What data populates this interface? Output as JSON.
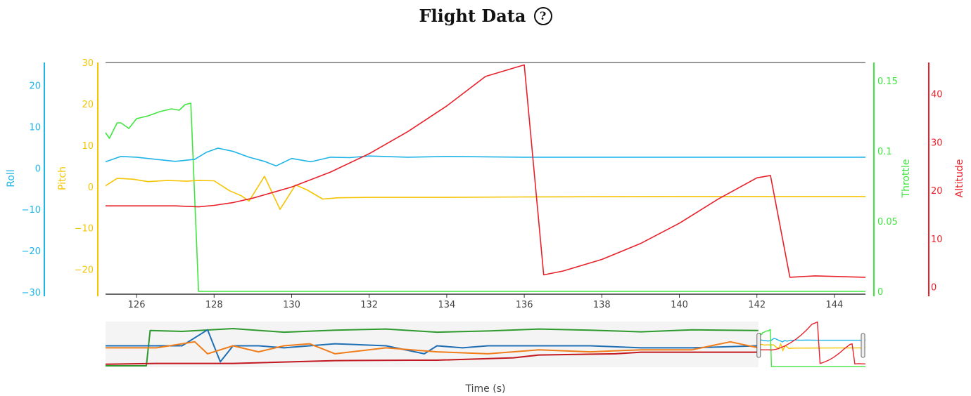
{
  "header": {
    "title": "Flight Data",
    "help_icon": "?"
  },
  "chart_data": {
    "type": "line",
    "xlabel": "Time (s)",
    "xlim": [
      125.2,
      144.8
    ],
    "x_ticks": [
      126,
      128,
      130,
      132,
      134,
      136,
      138,
      140,
      142,
      144
    ],
    "axes": [
      {
        "id": "roll",
        "label": "Roll",
        "color": "#1eb4e8",
        "ylim": [
          -30.5,
          25.5
        ],
        "ticks": [
          -30,
          -20,
          -10,
          0,
          10,
          20
        ]
      },
      {
        "id": "pitch",
        "label": "Pitch",
        "color": "#f5c400",
        "ylim": [
          -26,
          30
        ],
        "ticks": [
          -20,
          -10,
          0,
          10,
          20,
          30
        ]
      },
      {
        "id": "throttle",
        "label": "Throttle",
        "color": "#3ee63e",
        "ylim": [
          -0.002,
          0.163
        ],
        "ticks": [
          0,
          0.05,
          0.1,
          0.15
        ]
      },
      {
        "id": "altitude",
        "label": "Altitude",
        "color": "#e8202a",
        "ylim": [
          -1.5,
          46.5
        ],
        "ticks": [
          0,
          10,
          20,
          30,
          40
        ]
      }
    ],
    "series": [
      {
        "name": "Roll",
        "axis": "roll",
        "color": "#1eb4e8",
        "x": [
          125.2,
          125.6,
          126.0,
          126.5,
          127.0,
          127.5,
          127.8,
          128.1,
          128.5,
          128.9,
          129.3,
          129.6,
          130.0,
          130.5,
          131.0,
          131.5,
          132.0,
          133.0,
          134.0,
          136.0,
          140.0,
          144.8
        ],
        "y": [
          1.5,
          2.8,
          2.6,
          2.1,
          1.6,
          2.1,
          3.8,
          4.8,
          4.0,
          2.6,
          1.6,
          0.5,
          2.3,
          1.5,
          2.6,
          2.5,
          2.9,
          2.6,
          2.8,
          2.6,
          2.6,
          2.6
        ]
      },
      {
        "name": "Pitch",
        "axis": "pitch",
        "color": "#f5c400",
        "x": [
          125.2,
          125.5,
          125.9,
          126.3,
          126.8,
          127.3,
          127.6,
          128.0,
          128.4,
          128.7,
          128.9,
          129.3,
          129.7,
          130.1,
          130.4,
          130.8,
          131.2,
          132.0,
          134.0,
          136.0,
          140.0,
          144.8
        ],
        "y": [
          0.2,
          2.0,
          1.8,
          1.2,
          1.5,
          1.3,
          1.5,
          1.4,
          -1.0,
          -2.2,
          -3.5,
          2.5,
          -5.5,
          0.4,
          -0.8,
          -3.0,
          -2.7,
          -2.6,
          -2.6,
          -2.5,
          -2.4,
          -2.4
        ]
      },
      {
        "name": "Throttle",
        "axis": "throttle",
        "color": "#3ee63e",
        "x": [
          125.2,
          125.3,
          125.5,
          125.6,
          125.8,
          126.0,
          126.3,
          126.6,
          126.9,
          127.1,
          127.25,
          127.4,
          127.6,
          128.0,
          136.0,
          144.8
        ],
        "y": [
          0.113,
          0.109,
          0.12,
          0.12,
          0.116,
          0.123,
          0.125,
          0.128,
          0.13,
          0.129,
          0.133,
          0.134,
          0.0,
          0.0,
          0.0,
          0.0
        ]
      },
      {
        "name": "Altitude",
        "axis": "altitude",
        "color": "#e8202a",
        "x": [
          125.2,
          127.0,
          127.6,
          128.0,
          128.5,
          129.0,
          130.0,
          131.0,
          132.0,
          133.0,
          134.0,
          135.0,
          136.0,
          136.5,
          137.0,
          138.0,
          139.0,
          140.0,
          141.0,
          142.0,
          142.35,
          142.85,
          143.5,
          144.8
        ],
        "y": [
          16.8,
          16.8,
          16.6,
          16.9,
          17.5,
          18.4,
          20.7,
          23.8,
          27.6,
          32.2,
          37.5,
          43.6,
          46.0,
          2.5,
          3.3,
          5.7,
          9.0,
          13.2,
          18.2,
          22.6,
          23.1,
          2.0,
          2.3,
          2.0
        ]
      }
    ],
    "overview": {
      "xlim": [
        115.0,
        144.8
      ],
      "window": [
        140.6,
        144.8
      ],
      "series": [
        {
          "name": "Throttle",
          "color": "#2e9a2e",
          "x": [
            115.0,
            116.6,
            116.75,
            118.0,
            120.0,
            122.0,
            124.0,
            126.0,
            128.0,
            130.0,
            132.0,
            134.0,
            136.0,
            138.0,
            140.6
          ],
          "y": [
            0.0,
            0.0,
            0.88,
            0.86,
            0.93,
            0.84,
            0.89,
            0.92,
            0.84,
            0.87,
            0.92,
            0.89,
            0.85,
            0.9,
            0.88
          ]
        },
        {
          "name": "Roll",
          "color": "#1f6fb5",
          "x": [
            115.0,
            118.0,
            119.0,
            119.5,
            120.0,
            121.0,
            122.0,
            124.0,
            126.0,
            127.5,
            128.0,
            129.0,
            130.0,
            132.0,
            134.0,
            136.0,
            138.0,
            140.6
          ],
          "y": [
            0.5,
            0.5,
            0.9,
            0.1,
            0.5,
            0.5,
            0.45,
            0.55,
            0.5,
            0.3,
            0.5,
            0.45,
            0.5,
            0.5,
            0.5,
            0.45,
            0.45,
            0.5
          ]
        },
        {
          "name": "Pitch",
          "color": "#f07d1a",
          "x": [
            115.0,
            117.0,
            118.5,
            119.0,
            120.0,
            121.0,
            122.0,
            123.0,
            124.0,
            126.0,
            128.0,
            130.0,
            132.0,
            134.0,
            136.0,
            138.0,
            139.5,
            140.6
          ],
          "y": [
            0.45,
            0.45,
            0.6,
            0.3,
            0.5,
            0.35,
            0.5,
            0.55,
            0.3,
            0.45,
            0.35,
            0.3,
            0.4,
            0.35,
            0.4,
            0.4,
            0.6,
            0.45
          ]
        },
        {
          "name": "Altitude",
          "color": "#c2181f",
          "x": [
            115.0,
            117.0,
            120.0,
            124.0,
            127.0,
            128.0,
            131.0,
            132.0,
            135.0,
            136.0,
            140.6
          ],
          "y": [
            0.04,
            0.06,
            0.06,
            0.13,
            0.14,
            0.14,
            0.2,
            0.27,
            0.3,
            0.34,
            0.34
          ]
        }
      ]
    }
  }
}
